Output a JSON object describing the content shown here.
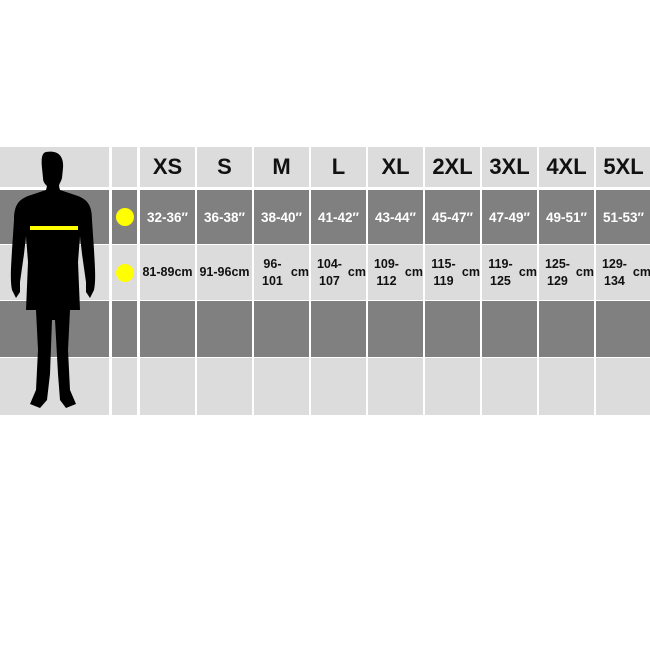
{
  "sizes": [
    "XS",
    "S",
    "M",
    "L",
    "XL",
    "2XL",
    "3XL",
    "4XL",
    "5XL"
  ],
  "inches": [
    "32-36″",
    "36-38″",
    "38-40″",
    "41-42″",
    "43-44″",
    "45-47″",
    "47-49″",
    "49-51″",
    "51-53″"
  ],
  "cm_values": [
    "81-89",
    "91-96",
    "96-101",
    "104-107",
    "109-112",
    "115-119",
    "119-125",
    "125-129",
    "129-134"
  ],
  "cm_unit": "cm",
  "colors": {
    "light_row": "#dcdcdc",
    "dark_row": "#808080",
    "marker": "#ffff00",
    "silhouette": "#000000"
  },
  "icons": {
    "figure": "male-silhouette-icon",
    "marker": "yellow-dot-icon"
  }
}
